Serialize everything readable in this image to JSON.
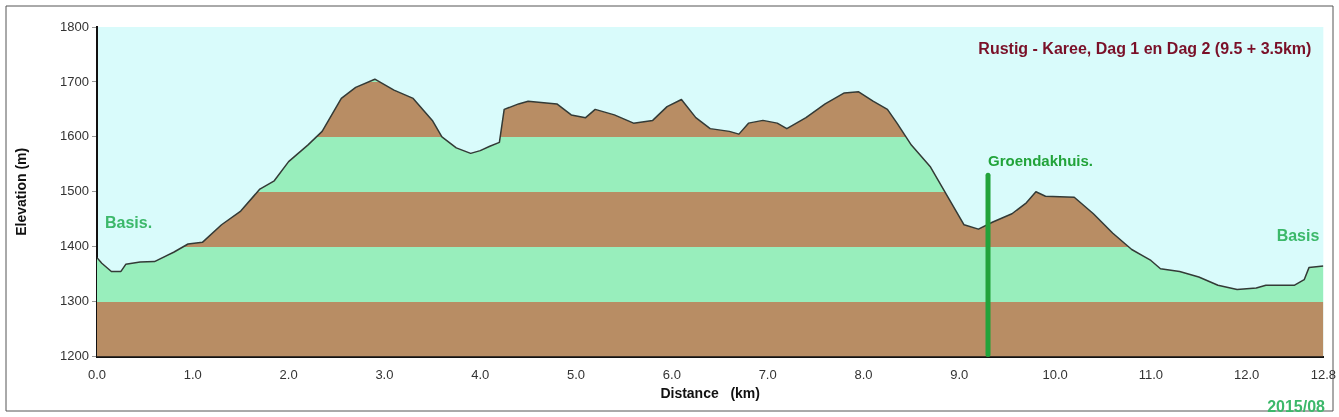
{
  "chart_data": {
    "type": "area",
    "title": "Rustig - Karee, Dag 1 en Dag 2 (9.5 + 3.5km)",
    "xlabel": "Distance   (km)",
    "ylabel": "Elevation (m)",
    "series": [
      {
        "color": "#b88d64",
        "x": [
          0,
          0.05,
          0.15,
          0.25,
          0.3,
          0.45,
          0.6,
          0.8,
          0.95,
          1.1,
          1.3,
          1.5,
          1.7,
          1.85,
          2.0,
          2.2,
          2.35,
          2.55,
          2.7,
          2.9,
          3.1,
          3.3,
          3.5,
          3.6,
          3.75,
          3.9,
          4.0,
          4.1,
          4.2,
          4.25,
          4.4,
          4.5,
          4.8,
          4.95,
          5.1,
          5.2,
          5.4,
          5.6,
          5.8,
          5.95,
          6.1,
          6.25,
          6.4,
          6.6,
          6.7,
          6.8,
          6.95,
          7.1,
          7.2,
          7.4,
          7.6,
          7.8,
          7.95,
          8.1,
          8.25,
          8.35,
          8.5,
          8.7,
          8.9,
          9.05,
          9.2,
          9.35,
          9.55,
          9.7,
          9.8,
          9.9,
          10.2,
          10.4,
          10.6,
          10.8,
          11.0,
          11.1,
          11.3,
          11.5,
          11.7,
          11.9,
          12.1,
          12.2,
          12.5,
          12.6,
          12.65,
          12.8
        ],
        "values": [
          1380,
          1370,
          1355,
          1355,
          1368,
          1372,
          1373,
          1390,
          1405,
          1408,
          1440,
          1465,
          1505,
          1520,
          1555,
          1585,
          1610,
          1670,
          1690,
          1705,
          1685,
          1670,
          1630,
          1600,
          1580,
          1570,
          1575,
          1583,
          1590,
          1650,
          1660,
          1665,
          1660,
          1640,
          1635,
          1650,
          1640,
          1625,
          1630,
          1655,
          1668,
          1635,
          1615,
          1610,
          1605,
          1625,
          1630,
          1625,
          1615,
          1635,
          1660,
          1680,
          1682,
          1665,
          1650,
          1625,
          1585,
          1545,
          1485,
          1440,
          1432,
          1445,
          1460,
          1480,
          1500,
          1492,
          1490,
          1460,
          1425,
          1395,
          1375,
          1360,
          1355,
          1345,
          1330,
          1322,
          1325,
          1330,
          1330,
          1340,
          1362,
          1365
        ]
      }
    ],
    "xlim": [
      0,
      12.8
    ],
    "ylim": [
      1200,
      1800
    ],
    "xticks": [
      {
        "value": 0,
        "label": "0.0"
      },
      {
        "value": 1,
        "label": "1.0"
      },
      {
        "value": 2,
        "label": "2.0"
      },
      {
        "value": 3,
        "label": "3.0"
      },
      {
        "value": 4,
        "label": "4.0"
      },
      {
        "value": 5,
        "label": "5.0"
      },
      {
        "value": 6,
        "label": "6.0"
      },
      {
        "value": 7,
        "label": "7.0"
      },
      {
        "value": 8,
        "label": "8.0"
      },
      {
        "value": 9,
        "label": "9.0"
      },
      {
        "value": 10,
        "label": "10.0"
      },
      {
        "value": 11,
        "label": "11.0"
      },
      {
        "value": 12,
        "label": "12.0"
      },
      {
        "value": 12.8,
        "label": "12.8"
      }
    ],
    "yticks": [
      1200,
      1300,
      1400,
      1500,
      1600,
      1700,
      1800
    ],
    "ref_lines": [
      {
        "axis": "x",
        "value": 9.3,
        "label": "Groendakhuis.",
        "color": "#22a33a"
      }
    ],
    "annotations": [
      "Basis.",
      "Basis",
      "2015/08"
    ],
    "grid": false,
    "legend": false,
    "marker": "none",
    "line_style": "solid"
  }
}
